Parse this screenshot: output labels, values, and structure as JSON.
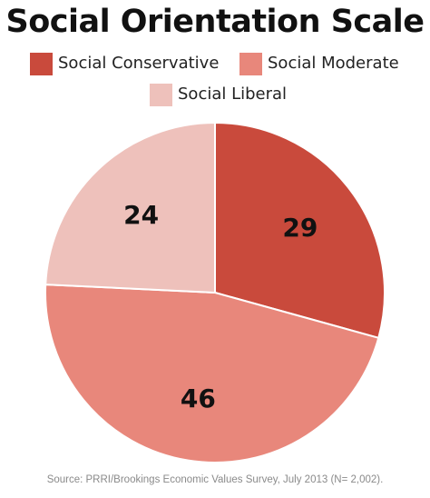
{
  "chart_data": {
    "type": "pie",
    "title": "Social Orientation Scale",
    "categories": [
      "Social Conservative",
      "Social Moderate",
      "Social Liberal"
    ],
    "values": [
      29,
      46,
      24
    ],
    "colors": [
      "#c94a3c",
      "#e8877b",
      "#eec1bb"
    ],
    "data_labels": [
      "29",
      "46",
      "24"
    ],
    "source": "Source: PRRI/Brookings Economic Values Survey, July 2013 (N= 2,002)."
  }
}
